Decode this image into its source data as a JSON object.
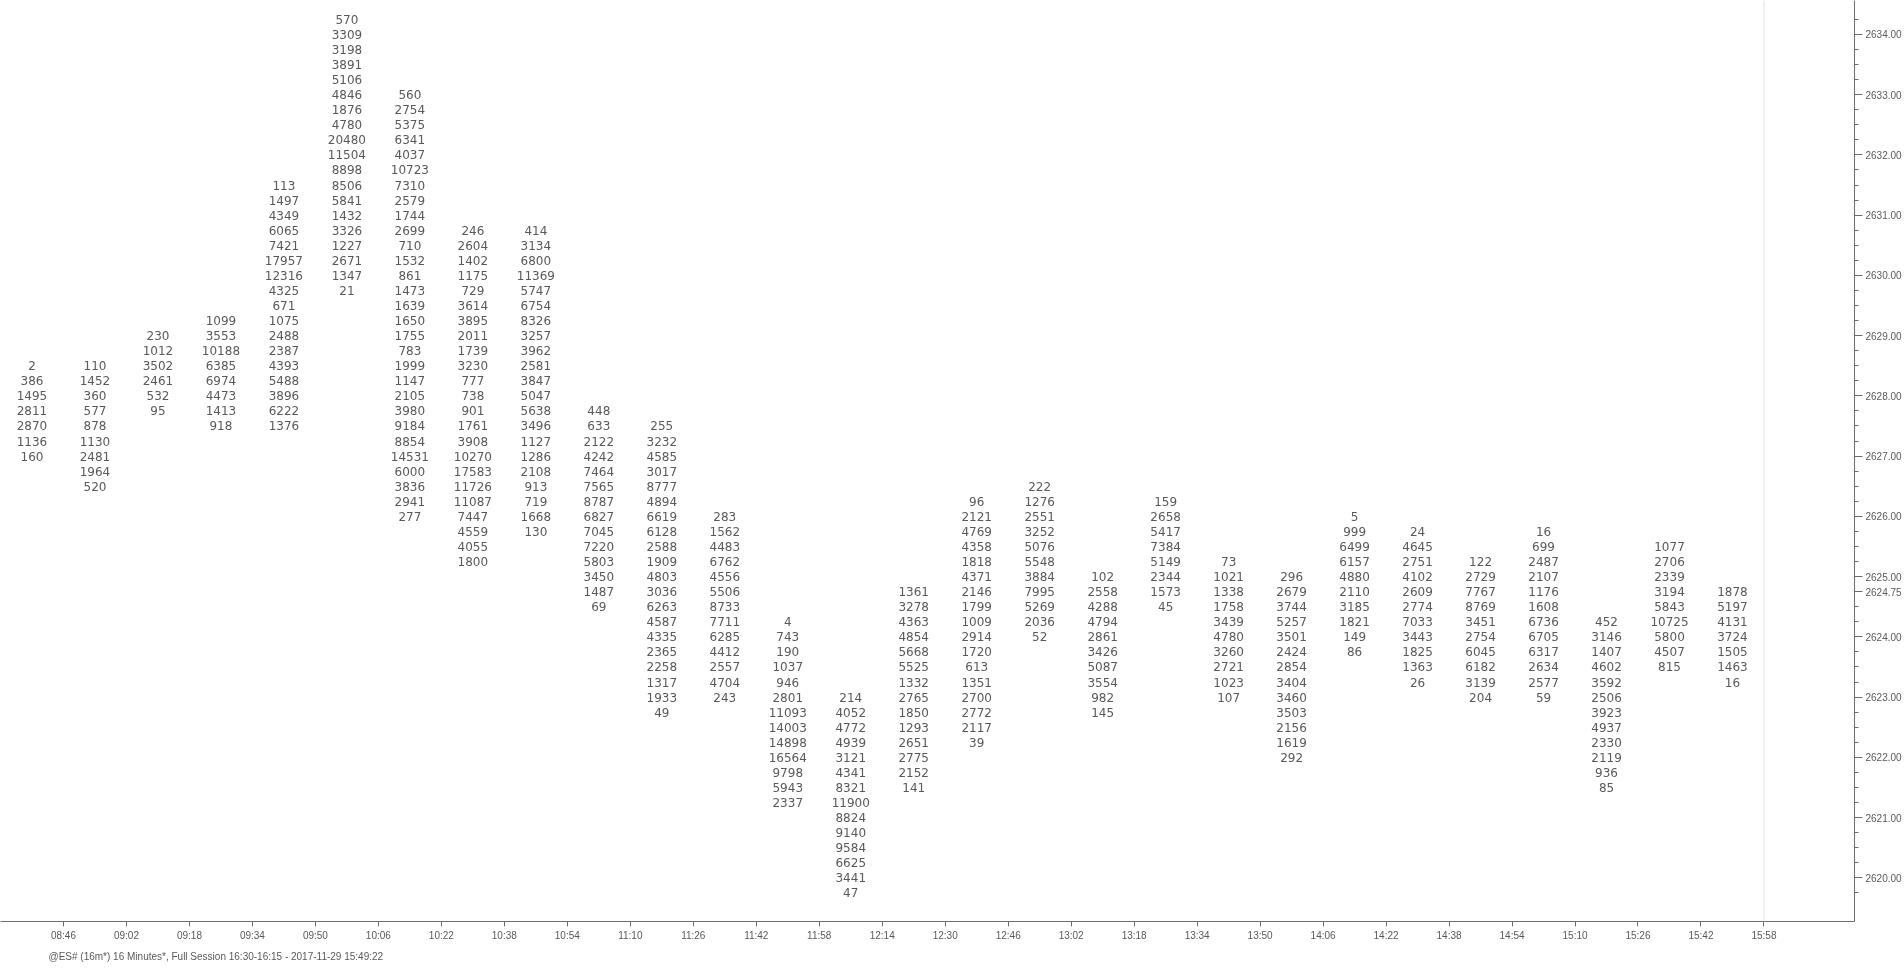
{
  "chart_data": {
    "type": "heatmap",
    "color": "#595959",
    "data_labels": true,
    "x": [
      8.6333,
      8.9,
      9.1667,
      9.4333,
      9.7,
      9.9667,
      10.2333,
      10.5,
      10.7667,
      11.0333,
      11.3,
      11.5667,
      11.8333,
      12.1,
      12.3667,
      12.6333,
      12.9,
      13.1667,
      13.4333,
      13.7,
      13.9667,
      14.2333,
      14.5,
      14.7667,
      15.0333,
      15.3,
      15.5667,
      15.8333
    ],
    "xlim": [
      8.5,
      16.35
    ],
    "xticks": [
      {
        "value": 8.7667,
        "label": "08:46"
      },
      {
        "value": 9.0333,
        "label": "09:02"
      },
      {
        "value": 9.3,
        "label": "09:18"
      },
      {
        "value": 9.5667,
        "label": "09:34"
      },
      {
        "value": 9.8333,
        "label": "09:50"
      },
      {
        "value": 10.1,
        "label": "10:06"
      },
      {
        "value": 10.3667,
        "label": "10:22"
      },
      {
        "value": 10.6333,
        "label": "10:38"
      },
      {
        "value": 10.9,
        "label": "10:54"
      },
      {
        "value": 11.1667,
        "label": "11:10"
      },
      {
        "value": 11.4333,
        "label": "11:26"
      },
      {
        "value": 11.7,
        "label": "11:42"
      },
      {
        "value": 11.9667,
        "label": "11:58"
      },
      {
        "value": 12.2333,
        "label": "12:14"
      },
      {
        "value": 12.5,
        "label": "12:30"
      },
      {
        "value": 12.7667,
        "label": "12:46"
      },
      {
        "value": 13.0333,
        "label": "13:02"
      },
      {
        "value": 13.3,
        "label": "13:18"
      },
      {
        "value": 13.5667,
        "label": "13:34"
      },
      {
        "value": 13.8333,
        "label": "13:50"
      },
      {
        "value": 14.1,
        "label": "14:06"
      },
      {
        "value": 14.3667,
        "label": "14:22"
      },
      {
        "value": 14.6333,
        "label": "14:38"
      },
      {
        "value": 14.9,
        "label": "14:54"
      },
      {
        "value": 15.1667,
        "label": "15:10"
      },
      {
        "value": 15.4333,
        "label": "15:26"
      },
      {
        "value": 15.7,
        "label": "15:42"
      },
      {
        "value": 15.9667,
        "label": "15:58"
      }
    ],
    "y_categories": [
      null,
      "2634.00",
      null,
      null,
      null,
      "2633.00",
      null,
      null,
      null,
      "2632.00",
      null,
      null,
      null,
      "2631.00",
      null,
      null,
      null,
      "2630.00",
      null,
      null,
      null,
      "2629.00",
      null,
      null,
      null,
      "2628.00",
      null,
      null,
      null,
      "2627.00",
      null,
      null,
      null,
      "2626.00",
      null,
      null,
      null,
      "2625.00",
      "2624.75",
      null,
      null,
      "2624.00",
      null,
      null,
      null,
      "2623.00",
      null,
      null,
      null,
      "2622.00",
      null,
      null,
      null,
      "2621.00",
      null,
      null,
      null,
      "2620.00",
      null
    ],
    "cells": [
      [
        null,
        null,
        null,
        null,
        null,
        570,
        null,
        null,
        null,
        null,
        null,
        null,
        null,
        null,
        null,
        null,
        null,
        null,
        null,
        null,
        null,
        null,
        null,
        null,
        null,
        null,
        null,
        null
      ],
      [
        null,
        null,
        null,
        null,
        null,
        3309,
        null,
        null,
        null,
        null,
        null,
        null,
        null,
        null,
        null,
        null,
        null,
        null,
        null,
        null,
        null,
        null,
        null,
        null,
        null,
        null,
        null,
        null
      ],
      [
        null,
        null,
        null,
        null,
        null,
        3198,
        null,
        null,
        null,
        null,
        null,
        null,
        null,
        null,
        null,
        null,
        null,
        null,
        null,
        null,
        null,
        null,
        null,
        null,
        null,
        null,
        null,
        null
      ],
      [
        null,
        null,
        null,
        null,
        null,
        3891,
        null,
        null,
        null,
        null,
        null,
        null,
        null,
        null,
        null,
        null,
        null,
        null,
        null,
        null,
        null,
        null,
        null,
        null,
        null,
        null,
        null,
        null
      ],
      [
        null,
        null,
        null,
        null,
        null,
        5106,
        null,
        null,
        null,
        null,
        null,
        null,
        null,
        null,
        null,
        null,
        null,
        null,
        null,
        null,
        null,
        null,
        null,
        null,
        null,
        null,
        null,
        null
      ],
      [
        null,
        null,
        null,
        null,
        null,
        4846,
        560,
        null,
        null,
        null,
        null,
        null,
        null,
        null,
        null,
        null,
        null,
        null,
        null,
        null,
        null,
        null,
        null,
        null,
        null,
        null,
        null,
        null
      ],
      [
        null,
        null,
        null,
        null,
        null,
        1876,
        2754,
        null,
        null,
        null,
        null,
        null,
        null,
        null,
        null,
        null,
        null,
        null,
        null,
        null,
        null,
        null,
        null,
        null,
        null,
        null,
        null,
        null
      ],
      [
        null,
        null,
        null,
        null,
        null,
        4780,
        5375,
        null,
        null,
        null,
        null,
        null,
        null,
        null,
        null,
        null,
        null,
        null,
        null,
        null,
        null,
        null,
        null,
        null,
        null,
        null,
        null,
        null
      ],
      [
        null,
        null,
        null,
        null,
        null,
        20480,
        6341,
        null,
        null,
        null,
        null,
        null,
        null,
        null,
        null,
        null,
        null,
        null,
        null,
        null,
        null,
        null,
        null,
        null,
        null,
        null,
        null,
        null
      ],
      [
        null,
        null,
        null,
        null,
        null,
        11504,
        4037,
        null,
        null,
        null,
        null,
        null,
        null,
        null,
        null,
        null,
        null,
        null,
        null,
        null,
        null,
        null,
        null,
        null,
        null,
        null,
        null,
        null
      ],
      [
        null,
        null,
        null,
        null,
        null,
        8898,
        10723,
        null,
        null,
        null,
        null,
        null,
        null,
        null,
        null,
        null,
        null,
        null,
        null,
        null,
        null,
        null,
        null,
        null,
        null,
        null,
        null,
        null
      ],
      [
        null,
        null,
        null,
        null,
        113,
        8506,
        7310,
        null,
        null,
        null,
        null,
        null,
        null,
        null,
        null,
        null,
        null,
        null,
        null,
        null,
        null,
        null,
        null,
        null,
        null,
        null,
        null,
        null
      ],
      [
        null,
        null,
        null,
        null,
        1497,
        5841,
        2579,
        null,
        null,
        null,
        null,
        null,
        null,
        null,
        null,
        null,
        null,
        null,
        null,
        null,
        null,
        null,
        null,
        null,
        null,
        null,
        null,
        null
      ],
      [
        null,
        null,
        null,
        null,
        4349,
        1432,
        1744,
        null,
        null,
        null,
        null,
        null,
        null,
        null,
        null,
        null,
        null,
        null,
        null,
        null,
        null,
        null,
        null,
        null,
        null,
        null,
        null,
        null
      ],
      [
        null,
        null,
        null,
        null,
        6065,
        3326,
        2699,
        246,
        414,
        null,
        null,
        null,
        null,
        null,
        null,
        null,
        null,
        null,
        null,
        null,
        null,
        null,
        null,
        null,
        null,
        null,
        null,
        null
      ],
      [
        null,
        null,
        null,
        null,
        7421,
        1227,
        710,
        2604,
        3134,
        null,
        null,
        null,
        null,
        null,
        null,
        null,
        null,
        null,
        null,
        null,
        null,
        null,
        null,
        null,
        null,
        null,
        null,
        null
      ],
      [
        null,
        null,
        null,
        null,
        17957,
        2671,
        1532,
        1402,
        6800,
        null,
        null,
        null,
        null,
        null,
        null,
        null,
        null,
        null,
        null,
        null,
        null,
        null,
        null,
        null,
        null,
        null,
        null,
        null
      ],
      [
        null,
        null,
        null,
        null,
        12316,
        1347,
        861,
        1175,
        11369,
        null,
        null,
        null,
        null,
        null,
        null,
        null,
        null,
        null,
        null,
        null,
        null,
        null,
        null,
        null,
        null,
        null,
        null,
        null
      ],
      [
        null,
        null,
        null,
        null,
        4325,
        21,
        1473,
        729,
        5747,
        null,
        null,
        null,
        null,
        null,
        null,
        null,
        null,
        null,
        null,
        null,
        null,
        null,
        null,
        null,
        null,
        null,
        null,
        null
      ],
      [
        null,
        null,
        null,
        null,
        671,
        null,
        1639,
        3614,
        6754,
        null,
        null,
        null,
        null,
        null,
        null,
        null,
        null,
        null,
        null,
        null,
        null,
        null,
        null,
        null,
        null,
        null,
        null,
        null
      ],
      [
        null,
        null,
        null,
        1099,
        1075,
        null,
        1650,
        3895,
        8326,
        null,
        null,
        null,
        null,
        null,
        null,
        null,
        null,
        null,
        null,
        null,
        null,
        null,
        null,
        null,
        null,
        null,
        null,
        null
      ],
      [
        null,
        null,
        230,
        3553,
        2488,
        null,
        1755,
        2011,
        3257,
        null,
        null,
        null,
        null,
        null,
        null,
        null,
        null,
        null,
        null,
        null,
        null,
        null,
        null,
        null,
        null,
        null,
        null,
        null
      ],
      [
        null,
        null,
        1012,
        10188,
        2387,
        null,
        783,
        1739,
        3962,
        null,
        null,
        null,
        null,
        null,
        null,
        null,
        null,
        null,
        null,
        null,
        null,
        null,
        null,
        null,
        null,
        null,
        null,
        null
      ],
      [
        2,
        110,
        3502,
        6385,
        4393,
        null,
        1999,
        3230,
        2581,
        null,
        null,
        null,
        null,
        null,
        null,
        null,
        null,
        null,
        null,
        null,
        null,
        null,
        null,
        null,
        null,
        null,
        null,
        null
      ],
      [
        386,
        1452,
        2461,
        6974,
        5488,
        null,
        1147,
        777,
        3847,
        null,
        null,
        null,
        null,
        null,
        null,
        null,
        null,
        null,
        null,
        null,
        null,
        null,
        null,
        null,
        null,
        null,
        null,
        null
      ],
      [
        1495,
        360,
        532,
        4473,
        3896,
        null,
        2105,
        738,
        5047,
        null,
        null,
        null,
        null,
        null,
        null,
        null,
        null,
        null,
        null,
        null,
        null,
        null,
        null,
        null,
        null,
        null,
        null,
        null
      ],
      [
        2811,
        577,
        95,
        1413,
        6222,
        null,
        3980,
        901,
        5638,
        448,
        null,
        null,
        null,
        null,
        null,
        null,
        null,
        null,
        null,
        null,
        null,
        null,
        null,
        null,
        null,
        null,
        null,
        null
      ],
      [
        2870,
        878,
        null,
        918,
        1376,
        null,
        9184,
        1761,
        3496,
        633,
        255,
        null,
        null,
        null,
        null,
        null,
        null,
        null,
        null,
        null,
        null,
        null,
        null,
        null,
        null,
        null,
        null,
        null
      ],
      [
        1136,
        1130,
        null,
        null,
        null,
        null,
        8854,
        3908,
        1127,
        2122,
        3232,
        null,
        null,
        null,
        null,
        null,
        null,
        null,
        null,
        null,
        null,
        null,
        null,
        null,
        null,
        null,
        null,
        null
      ],
      [
        160,
        2481,
        null,
        null,
        null,
        null,
        14531,
        10270,
        1286,
        4242,
        4585,
        null,
        null,
        null,
        null,
        null,
        null,
        null,
        null,
        null,
        null,
        null,
        null,
        null,
        null,
        null,
        null,
        null
      ],
      [
        null,
        1964,
        null,
        null,
        null,
        null,
        6000,
        17583,
        2108,
        7464,
        3017,
        null,
        null,
        null,
        null,
        null,
        null,
        null,
        null,
        null,
        null,
        null,
        null,
        null,
        null,
        null,
        null,
        null
      ],
      [
        null,
        520,
        null,
        null,
        null,
        null,
        3836,
        11726,
        913,
        7565,
        8777,
        null,
        null,
        null,
        null,
        null,
        222,
        null,
        null,
        null,
        null,
        null,
        null,
        null,
        null,
        null,
        null,
        null
      ],
      [
        null,
        null,
        null,
        null,
        null,
        null,
        2941,
        11087,
        719,
        8787,
        4894,
        null,
        null,
        null,
        null,
        96,
        1276,
        null,
        159,
        null,
        null,
        null,
        null,
        null,
        null,
        null,
        null,
        null
      ],
      [
        null,
        null,
        null,
        null,
        null,
        null,
        277,
        7447,
        1668,
        6827,
        6619,
        283,
        null,
        null,
        null,
        2121,
        2551,
        null,
        2658,
        null,
        null,
        5,
        null,
        null,
        null,
        null,
        null,
        null
      ],
      [
        null,
        null,
        null,
        null,
        null,
        null,
        null,
        4559,
        130,
        7045,
        6128,
        1562,
        null,
        null,
        null,
        4769,
        3252,
        null,
        5417,
        null,
        null,
        999,
        24,
        null,
        16,
        null,
        null,
        null
      ],
      [
        null,
        null,
        null,
        null,
        null,
        null,
        null,
        4055,
        null,
        7220,
        2588,
        4483,
        null,
        null,
        null,
        4358,
        5076,
        null,
        7384,
        null,
        null,
        6499,
        4645,
        null,
        699,
        null,
        1077,
        null
      ],
      [
        null,
        null,
        null,
        null,
        null,
        null,
        null,
        1800,
        null,
        5803,
        1909,
        6762,
        null,
        null,
        null,
        1818,
        5548,
        null,
        5149,
        73,
        null,
        6157,
        2751,
        122,
        2487,
        null,
        2706,
        null
      ],
      [
        null,
        null,
        null,
        null,
        null,
        null,
        null,
        null,
        null,
        3450,
        4803,
        4556,
        null,
        null,
        null,
        4371,
        3884,
        102,
        2344,
        1021,
        296,
        4880,
        4102,
        2729,
        2107,
        null,
        2339,
        null
      ],
      [
        null,
        null,
        null,
        null,
        null,
        null,
        null,
        null,
        null,
        1487,
        3036,
        5506,
        null,
        null,
        1361,
        2146,
        7995,
        2558,
        1573,
        1338,
        2679,
        2110,
        2609,
        7767,
        1176,
        null,
        3194,
        1878
      ],
      [
        null,
        null,
        null,
        null,
        null,
        null,
        null,
        null,
        null,
        69,
        6263,
        8733,
        null,
        null,
        3278,
        1799,
        5269,
        4288,
        45,
        1758,
        3744,
        3185,
        2774,
        8769,
        1608,
        null,
        5843,
        5197
      ],
      [
        null,
        null,
        null,
        null,
        null,
        null,
        null,
        null,
        null,
        null,
        4587,
        7711,
        4,
        null,
        4363,
        1009,
        2036,
        4794,
        null,
        3439,
        5257,
        1821,
        7033,
        3451,
        6736,
        452,
        10725,
        4131
      ],
      [
        null,
        null,
        null,
        null,
        null,
        null,
        null,
        null,
        null,
        null,
        4335,
        6285,
        743,
        null,
        4854,
        2914,
        52,
        2861,
        null,
        4780,
        3501,
        149,
        3443,
        2754,
        6705,
        3146,
        5800,
        3724
      ],
      [
        null,
        null,
        null,
        null,
        null,
        null,
        null,
        null,
        null,
        null,
        2365,
        4412,
        190,
        null,
        5668,
        1720,
        null,
        3426,
        null,
        3260,
        2424,
        86,
        1825,
        6045,
        6317,
        1407,
        4507,
        1505
      ],
      [
        null,
        null,
        null,
        null,
        null,
        null,
        null,
        null,
        null,
        null,
        2258,
        2557,
        1037,
        null,
        5525,
        613,
        null,
        5087,
        null,
        2721,
        2854,
        null,
        1363,
        6182,
        2634,
        4602,
        815,
        1463
      ],
      [
        null,
        null,
        null,
        null,
        null,
        null,
        null,
        null,
        null,
        null,
        1317,
        4704,
        946,
        null,
        1332,
        1351,
        null,
        3554,
        null,
        1023,
        3404,
        null,
        26,
        3139,
        2577,
        3592,
        null,
        16
      ],
      [
        null,
        null,
        null,
        null,
        null,
        null,
        null,
        null,
        null,
        null,
        1933,
        243,
        2801,
        214,
        2765,
        2700,
        null,
        982,
        null,
        107,
        3460,
        null,
        null,
        204,
        59,
        2506,
        null,
        null
      ],
      [
        null,
        null,
        null,
        null,
        null,
        null,
        null,
        null,
        null,
        null,
        49,
        null,
        11093,
        4052,
        1850,
        2772,
        null,
        145,
        null,
        null,
        3503,
        null,
        null,
        null,
        null,
        3923,
        null,
        null
      ],
      [
        null,
        null,
        null,
        null,
        null,
        null,
        null,
        null,
        null,
        null,
        null,
        null,
        14003,
        4772,
        1293,
        2117,
        null,
        null,
        null,
        null,
        2156,
        null,
        null,
        null,
        null,
        4937,
        null,
        null
      ],
      [
        null,
        null,
        null,
        null,
        null,
        null,
        null,
        null,
        null,
        null,
        null,
        null,
        14898,
        4939,
        2651,
        39,
        null,
        null,
        null,
        null,
        1619,
        null,
        null,
        null,
        null,
        2330,
        null,
        null
      ],
      [
        null,
        null,
        null,
        null,
        null,
        null,
        null,
        null,
        null,
        null,
        null,
        null,
        16564,
        3121,
        2775,
        null,
        null,
        null,
        null,
        null,
        292,
        null,
        null,
        null,
        null,
        2119,
        null,
        null
      ],
      [
        null,
        null,
        null,
        null,
        null,
        null,
        null,
        null,
        null,
        null,
        null,
        null,
        9798,
        4341,
        2152,
        null,
        null,
        null,
        null,
        null,
        null,
        null,
        null,
        null,
        null,
        936,
        null,
        null
      ],
      [
        null,
        null,
        null,
        null,
        null,
        null,
        null,
        null,
        null,
        null,
        null,
        null,
        5943,
        8321,
        141,
        null,
        null,
        null,
        null,
        null,
        null,
        null,
        null,
        null,
        null,
        85,
        null,
        null
      ],
      [
        null,
        null,
        null,
        null,
        null,
        null,
        null,
        null,
        null,
        null,
        null,
        null,
        2337,
        11900,
        null,
        null,
        null,
        null,
        null,
        null,
        null,
        null,
        null,
        null,
        null,
        null,
        null,
        null
      ],
      [
        null,
        null,
        null,
        null,
        null,
        null,
        null,
        null,
        null,
        null,
        null,
        null,
        null,
        8824,
        null,
        null,
        null,
        null,
        null,
        null,
        null,
        null,
        null,
        null,
        null,
        null,
        null,
        null
      ],
      [
        null,
        null,
        null,
        null,
        null,
        null,
        null,
        null,
        null,
        null,
        null,
        null,
        null,
        9140,
        null,
        null,
        null,
        null,
        null,
        null,
        null,
        null,
        null,
        null,
        null,
        null,
        null,
        null
      ],
      [
        null,
        null,
        null,
        null,
        null,
        null,
        null,
        null,
        null,
        null,
        null,
        null,
        null,
        9584,
        null,
        null,
        null,
        null,
        null,
        null,
        null,
        null,
        null,
        null,
        null,
        null,
        null,
        null
      ],
      [
        null,
        null,
        null,
        null,
        null,
        null,
        null,
        null,
        null,
        null,
        null,
        null,
        null,
        6625,
        null,
        null,
        null,
        null,
        null,
        null,
        null,
        null,
        null,
        null,
        null,
        null,
        null,
        null
      ],
      [
        null,
        null,
        null,
        null,
        null,
        null,
        null,
        null,
        null,
        null,
        null,
        null,
        null,
        3441,
        null,
        null,
        null,
        null,
        null,
        null,
        null,
        null,
        null,
        null,
        null,
        null,
        null,
        null
      ],
      [
        null,
        null,
        null,
        null,
        null,
        null,
        null,
        null,
        null,
        null,
        null,
        null,
        null,
        47,
        null,
        null,
        null,
        null,
        null,
        null,
        null,
        null,
        null,
        null,
        null,
        null,
        null,
        null
      ]
    ],
    "ref_lines": [
      {
        "axis": "x",
        "value": 15.9667,
        "color": "#e3e3e3"
      }
    ],
    "annotations": [
      "@ES# (16m*) 16 Minutes*, Full Session 16:30-16:15 - 2017-11-29 15:49:22"
    ]
  }
}
